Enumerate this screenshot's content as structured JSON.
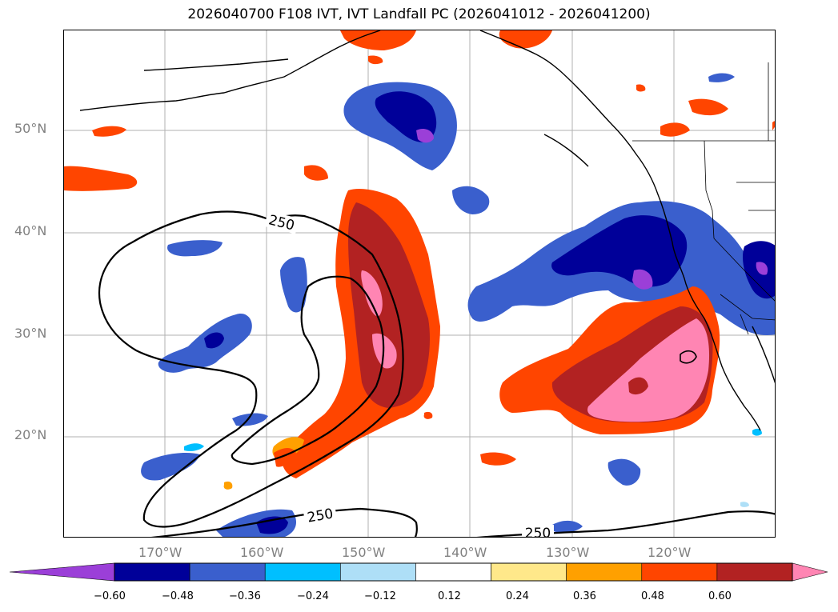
{
  "title": "2026040700 F108 IVT, IVT Landfall PC (2026041012 - 2026041200)",
  "latitude_labels": [
    "50°N",
    "40°N",
    "30°N",
    "20°N"
  ],
  "longitude_labels": [
    "170°W",
    "160°W",
    "150°W",
    "140°W",
    "130°W",
    "120°W"
  ],
  "contour_labels": [
    "250",
    "250",
    "250"
  ],
  "colorbar": {
    "ticks": [
      "−0.60",
      "−0.48",
      "−0.36",
      "−0.24",
      "−0.12",
      "0.12",
      "0.24",
      "0.36",
      "0.48",
      "0.60"
    ],
    "colors": [
      "#9b3fd8",
      "#000099",
      "#3a5fcd",
      "#00bfff",
      "#aedff7",
      "#ffffff",
      "#ffe88a",
      "#ffa000",
      "#ff4500",
      "#b22222",
      "#ff85b3"
    ]
  }
}
